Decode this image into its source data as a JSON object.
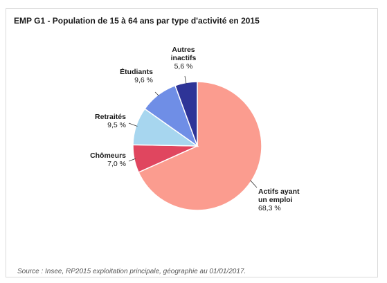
{
  "header": {
    "title": "EMP G1 - Population de 15 à 64 ans par type d'activité en 2015"
  },
  "footer": {
    "source": "Source : Insee, RP2015 exploitation principale, géographie au 01/01/2017."
  },
  "chart_data": {
    "type": "pie",
    "title": "EMP G1 - Population de 15 à 64 ans par type d'activité en 2015",
    "slices": [
      {
        "label_lines": [
          "Actifs ayant",
          "un emploi"
        ],
        "value": 68.3,
        "display": "68,3 %",
        "color": "#fb9c8f"
      },
      {
        "label_lines": [
          "Chômeurs"
        ],
        "value": 7.0,
        "display": "7,0 %",
        "color": "#e0465f"
      },
      {
        "label_lines": [
          "Retraités"
        ],
        "value": 9.5,
        "display": "9,5 %",
        "color": "#a7d6ef"
      },
      {
        "label_lines": [
          "Étudiants"
        ],
        "value": 9.6,
        "display": "9,6 %",
        "color": "#6f8ee6"
      },
      {
        "label_lines": [
          "Autres",
          "inactifs"
        ],
        "value": 5.6,
        "display": "5,6 %",
        "color": "#2e3497"
      }
    ]
  }
}
